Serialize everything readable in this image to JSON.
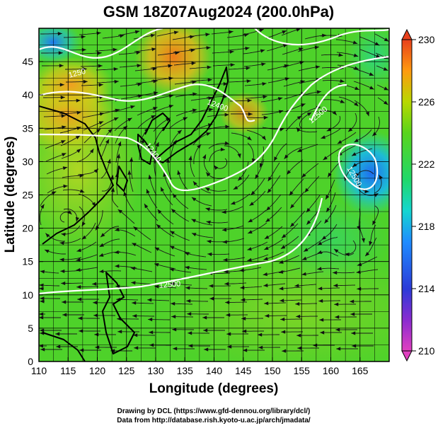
{
  "title": "GSM 18Z07Aug2024 (200.0hPa)",
  "xlabel": "Longitude (degrees)",
  "ylabel": "Latitude  (degrees)",
  "x_ticks": [
    "110",
    "115",
    "120",
    "125",
    "130",
    "135",
    "140",
    "145",
    "150",
    "155",
    "160",
    "165"
  ],
  "y_ticks": [
    "0",
    "5",
    "10",
    "15",
    "20",
    "25",
    "30",
    "35",
    "40",
    "45"
  ],
  "colorbar": {
    "labels": [
      "230",
      "226",
      "222",
      "218",
      "214",
      "210"
    ],
    "range": [
      210,
      230
    ]
  },
  "contour_labels": [
    "1250",
    "12400",
    "12400",
    "12500",
    "12500",
    "12500"
  ],
  "footer": {
    "line1": "Drawing by DCL (https://www.gfd-dennou.org/library/dcl/)",
    "line2": "Data from http://database.rish.kyoto-u.ac.jp/arch/jmadata/"
  },
  "map_extent": {
    "lon": [
      110,
      170
    ],
    "lat": [
      0,
      50
    ]
  },
  "colors": {
    "low": "#e04cc8",
    "cool": "#2b59ff",
    "cyan": "#19d8c8",
    "mid": "#3fd22a",
    "warm": "#c8d800",
    "hot": "#ff8a10",
    "max": "#e83a20"
  }
}
